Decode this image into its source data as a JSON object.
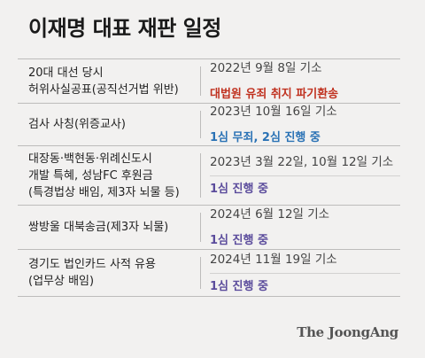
{
  "title": "이재명 대표 재판 일정",
  "rows": [
    {
      "case_lines": [
        "20대 대선 당시",
        "허위사실공표(공직선거법 위반)"
      ],
      "date": "2022년 9월 8일 기소",
      "status": "대법원 유죄 취지 파기환송",
      "status_color": "#c0311f"
    },
    {
      "case_lines": [
        "검사 사칭(위증교사)"
      ],
      "date": "2023년 10월 16일 기소",
      "status": "1심 무죄, 2심 진행 중",
      "status_color": "#2a72b5"
    },
    {
      "case_lines": [
        "대장동·백현동·위례신도시",
        "개발 특혜, 성남FC 후원금",
        "(특경법상 배임, 제3자 뇌물 등)"
      ],
      "date": "2023년 3월 22일, 10월 12일 기소",
      "status": "1심 진행 중",
      "status_color": "#5b4c9c"
    },
    {
      "case_lines": [
        "쌍방울 대북송금(제3자 뇌물)"
      ],
      "date": "2024년 6월 12일 기소",
      "status": "1심 진행 중",
      "status_color": "#5b4c9c"
    },
    {
      "case_lines": [
        "경기도 법인카드 사적 유용",
        "(업무상 배임)"
      ],
      "date": "2024년 11월 19일 기소",
      "status": "1심 진행 중",
      "status_color": "#5b4c9c"
    }
  ],
  "logo": "The JoongAng"
}
